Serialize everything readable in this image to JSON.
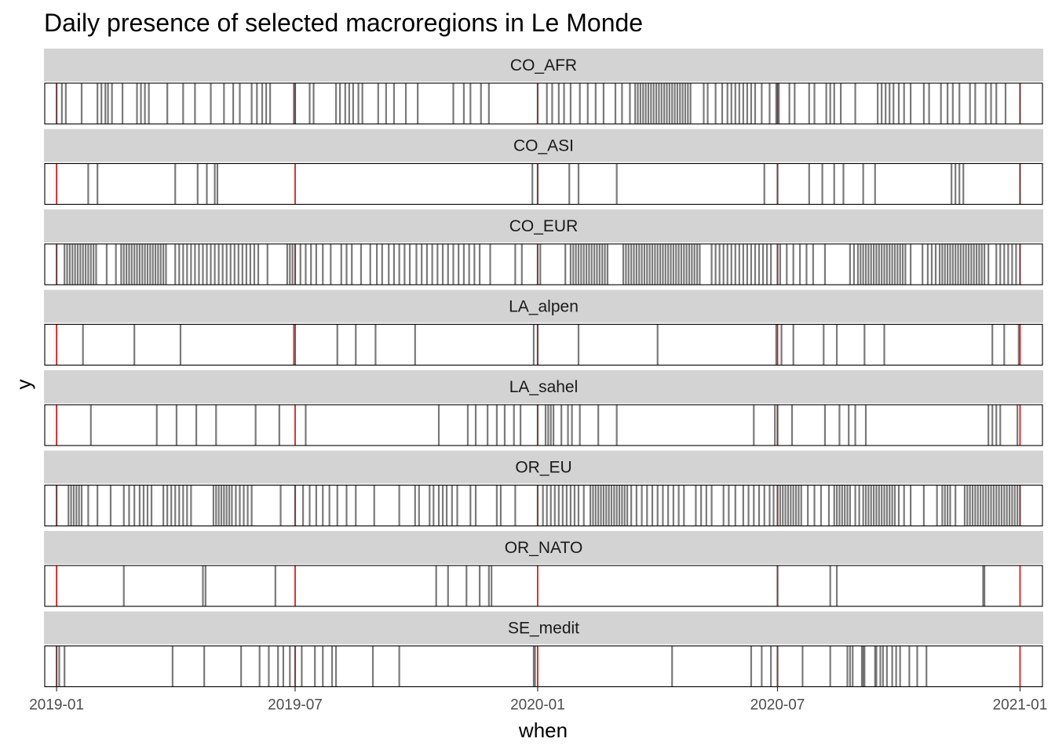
{
  "chart_data": {
    "type": "barcode",
    "title": "Daily presence of selected macroregions in Le Monde",
    "xlabel": "when",
    "ylabel": "y",
    "xlim": [
      "2018-12-23",
      "2021-01-18"
    ],
    "x_ticks": [
      "2019-01-01",
      "2019-07-01",
      "2020-01-01",
      "2020-07-01",
      "2021-01-01"
    ],
    "x_tick_labels": [
      "2019-01",
      "2019-07",
      "2020-01",
      "2020-07",
      "2021-01"
    ],
    "reference_lines": [
      "2019-01-01",
      "2019-07-01",
      "2020-01-01",
      "2020-07-01",
      "2021-01-01"
    ],
    "colors": {
      "mark": "#4d4d4d",
      "reference_line": "#e41a1c",
      "strip_background": "#d3d3d3",
      "panel_border": "#000000"
    },
    "series": [
      {
        "name": "CO_AFR",
        "dates": [
          "2019-01-01",
          "2019-01-05",
          "2019-01-08",
          "2019-01-20",
          "2019-02-01",
          "2019-02-04",
          "2019-02-07",
          "2019-02-09",
          "2019-02-12",
          "2019-02-20",
          "2019-03-03",
          "2019-03-06",
          "2019-03-09",
          "2019-03-12",
          "2019-03-26",
          "2019-04-07",
          "2019-04-16",
          "2019-04-28",
          "2019-05-08",
          "2019-05-15",
          "2019-05-20",
          "2019-05-29",
          "2019-06-02",
          "2019-06-06",
          "2019-06-09",
          "2019-06-12",
          "2019-06-30",
          "2019-07-01",
          "2019-07-12",
          "2019-07-15",
          "2019-08-01",
          "2019-08-04",
          "2019-08-08",
          "2019-08-11",
          "2019-08-14",
          "2019-08-18",
          "2019-08-21",
          "2019-09-02",
          "2019-09-08",
          "2019-09-14",
          "2019-09-23",
          "2019-10-02",
          "2019-10-29",
          "2019-11-06",
          "2019-11-11",
          "2019-11-19",
          "2019-11-25",
          "2020-01-01",
          "2020-01-08",
          "2020-01-12",
          "2020-01-17",
          "2020-01-21",
          "2020-01-26",
          "2020-02-02",
          "2020-02-08",
          "2020-02-14",
          "2020-02-20",
          "2020-02-29",
          "2020-03-05",
          "2020-03-11",
          "2020-03-15",
          "2020-03-17",
          "2020-03-19",
          "2020-03-21",
          "2020-03-23",
          "2020-03-25",
          "2020-03-27",
          "2020-03-29",
          "2020-03-31",
          "2020-04-02",
          "2020-04-04",
          "2020-04-06",
          "2020-04-08",
          "2020-04-10",
          "2020-04-12",
          "2020-04-14",
          "2020-04-16",
          "2020-04-18",
          "2020-04-20",
          "2020-04-22",
          "2020-04-24",
          "2020-04-26",
          "2020-05-06",
          "2020-05-09",
          "2020-05-15",
          "2020-05-20",
          "2020-05-24",
          "2020-05-27",
          "2020-05-30",
          "2020-06-02",
          "2020-06-05",
          "2020-06-08",
          "2020-06-11",
          "2020-06-14",
          "2020-06-19",
          "2020-06-25",
          "2020-06-30",
          "2020-07-01",
          "2020-07-02",
          "2020-07-10",
          "2020-07-14",
          "2020-07-25",
          "2020-07-29",
          "2020-08-07",
          "2020-08-10",
          "2020-08-13",
          "2020-08-18",
          "2020-08-29",
          "2020-09-15",
          "2020-09-18",
          "2020-09-21",
          "2020-09-24",
          "2020-09-27",
          "2020-10-01",
          "2020-10-05",
          "2020-10-10",
          "2020-10-20",
          "2020-10-24",
          "2020-11-02",
          "2020-11-07",
          "2020-11-11",
          "2020-11-16",
          "2020-11-24",
          "2020-11-28",
          "2020-12-06",
          "2020-12-10",
          "2020-12-14",
          "2020-12-21",
          "2021-01-01"
        ]
      },
      {
        "name": "CO_ASI",
        "dates": [
          "2019-01-25",
          "2019-02-01",
          "2019-04-01",
          "2019-04-18",
          "2019-04-25",
          "2019-05-01",
          "2019-05-03",
          "2019-12-28",
          "2020-01-01",
          "2020-01-25",
          "2020-02-01",
          "2020-03-01",
          "2020-06-21",
          "2020-07-01",
          "2020-07-25",
          "2020-08-04",
          "2020-08-13",
          "2020-08-20",
          "2020-09-04",
          "2020-09-13",
          "2020-11-10",
          "2020-11-13",
          "2020-11-16",
          "2020-11-19",
          "2021-01-01"
        ]
      },
      {
        "name": "CO_EUR",
        "dates": [
          "2019-01-01",
          "2019-01-07",
          "2019-01-09",
          "2019-01-11",
          "2019-01-13",
          "2019-01-15",
          "2019-01-17",
          "2019-01-19",
          "2019-01-21",
          "2019-01-23",
          "2019-01-25",
          "2019-01-27",
          "2019-01-29",
          "2019-01-31",
          "2019-02-08",
          "2019-02-15",
          "2019-02-19",
          "2019-02-21",
          "2019-02-23",
          "2019-02-25",
          "2019-02-27",
          "2019-03-01",
          "2019-03-03",
          "2019-03-05",
          "2019-03-07",
          "2019-03-09",
          "2019-03-11",
          "2019-03-13",
          "2019-03-15",
          "2019-03-17",
          "2019-03-19",
          "2019-03-21",
          "2019-03-23",
          "2019-03-25",
          "2019-04-01",
          "2019-04-04",
          "2019-04-07",
          "2019-04-10",
          "2019-04-13",
          "2019-04-16",
          "2019-04-19",
          "2019-04-22",
          "2019-04-25",
          "2019-04-28",
          "2019-05-01",
          "2019-05-04",
          "2019-05-07",
          "2019-05-10",
          "2019-05-13",
          "2019-05-16",
          "2019-05-19",
          "2019-05-22",
          "2019-05-25",
          "2019-05-28",
          "2019-05-31",
          "2019-06-03",
          "2019-06-10",
          "2019-06-25",
          "2019-06-27",
          "2019-06-29",
          "2019-07-01",
          "2019-07-05",
          "2019-07-09",
          "2019-07-13",
          "2019-07-17",
          "2019-07-22",
          "2019-07-28",
          "2019-08-05",
          "2019-08-09",
          "2019-08-13",
          "2019-08-20",
          "2019-08-27",
          "2019-09-01",
          "2019-09-05",
          "2019-09-10",
          "2019-09-14",
          "2019-09-18",
          "2019-09-22",
          "2019-09-26",
          "2019-10-01",
          "2019-10-05",
          "2019-10-09",
          "2019-10-13",
          "2019-10-17",
          "2019-10-21",
          "2019-10-25",
          "2019-10-29",
          "2019-11-02",
          "2019-11-06",
          "2019-11-10",
          "2019-11-14",
          "2019-11-18",
          "2019-11-26",
          "2019-12-15",
          "2019-12-20",
          "2020-01-01",
          "2020-01-03",
          "2020-01-22",
          "2020-01-26",
          "2020-01-28",
          "2020-01-30",
          "2020-02-01",
          "2020-02-03",
          "2020-02-05",
          "2020-02-07",
          "2020-02-09",
          "2020-02-11",
          "2020-02-13",
          "2020-02-15",
          "2020-02-17",
          "2020-02-19",
          "2020-02-21",
          "2020-02-23",
          "2020-03-06",
          "2020-03-08",
          "2020-03-10",
          "2020-03-12",
          "2020-03-14",
          "2020-03-16",
          "2020-03-18",
          "2020-03-20",
          "2020-03-22",
          "2020-03-24",
          "2020-03-26",
          "2020-03-28",
          "2020-03-30",
          "2020-04-01",
          "2020-04-03",
          "2020-04-05",
          "2020-04-07",
          "2020-04-09",
          "2020-04-11",
          "2020-04-13",
          "2020-04-15",
          "2020-04-17",
          "2020-04-19",
          "2020-04-21",
          "2020-04-23",
          "2020-04-25",
          "2020-04-27",
          "2020-04-29",
          "2020-05-01",
          "2020-05-03",
          "2020-05-12",
          "2020-05-15",
          "2020-05-18",
          "2020-05-21",
          "2020-05-24",
          "2020-05-27",
          "2020-05-30",
          "2020-06-02",
          "2020-06-05",
          "2020-06-08",
          "2020-06-11",
          "2020-06-14",
          "2020-06-17",
          "2020-06-20",
          "2020-06-23",
          "2020-06-26",
          "2020-07-01",
          "2020-07-03",
          "2020-07-08",
          "2020-07-13",
          "2020-07-18",
          "2020-07-23",
          "2020-07-28",
          "2020-08-06",
          "2020-08-25",
          "2020-08-28",
          "2020-08-31",
          "2020-09-02",
          "2020-09-04",
          "2020-09-06",
          "2020-09-08",
          "2020-09-10",
          "2020-09-12",
          "2020-09-14",
          "2020-09-16",
          "2020-09-18",
          "2020-09-20",
          "2020-09-22",
          "2020-09-24",
          "2020-09-26",
          "2020-09-28",
          "2020-09-30",
          "2020-10-02",
          "2020-10-04",
          "2020-10-06",
          "2020-10-10",
          "2020-10-19",
          "2020-10-23",
          "2020-10-26",
          "2020-10-29",
          "2020-11-01",
          "2020-11-03",
          "2020-11-05",
          "2020-11-07",
          "2020-11-09",
          "2020-11-11",
          "2020-11-13",
          "2020-11-15",
          "2020-11-17",
          "2020-11-19",
          "2020-11-21",
          "2020-11-23",
          "2020-11-25",
          "2020-11-27",
          "2020-11-29",
          "2020-12-01",
          "2020-12-03",
          "2020-12-05",
          "2020-12-08",
          "2020-12-14",
          "2020-12-17",
          "2020-12-20",
          "2020-12-23",
          "2020-12-26",
          "2020-12-29",
          "2021-01-01"
        ]
      },
      {
        "name": "LA_alpen",
        "dates": [
          "2019-01-21",
          "2019-03-01",
          "2019-04-05",
          "2019-06-30",
          "2019-08-02",
          "2019-08-16",
          "2019-08-31",
          "2019-09-30",
          "2019-12-29",
          "2020-01-01",
          "2020-02-01",
          "2020-04-01",
          "2020-06-30",
          "2020-07-04",
          "2020-07-13",
          "2020-08-05",
          "2020-08-15",
          "2020-09-05",
          "2020-09-20",
          "2020-12-11",
          "2020-12-20",
          "2020-12-31"
        ]
      },
      {
        "name": "LA_sahel",
        "dates": [
          "2019-01-27",
          "2019-03-18",
          "2019-04-02",
          "2019-04-17",
          "2019-05-02",
          "2019-06-01",
          "2019-06-19",
          "2019-07-09",
          "2019-10-18",
          "2019-11-09",
          "2019-11-15",
          "2019-11-24",
          "2019-12-01",
          "2019-12-07",
          "2019-12-14",
          "2019-12-19",
          "2020-01-01",
          "2020-01-07",
          "2020-01-09",
          "2020-01-11",
          "2020-01-13",
          "2020-01-19",
          "2020-01-24",
          "2020-01-27",
          "2020-02-02",
          "2020-02-16",
          "2020-03-01",
          "2020-06-13",
          "2020-06-29",
          "2020-07-01",
          "2020-07-12",
          "2020-08-06",
          "2020-08-17",
          "2020-08-24",
          "2020-08-29",
          "2020-09-06",
          "2020-12-08",
          "2020-12-11",
          "2020-12-14",
          "2020-12-17",
          "2020-12-30"
        ]
      },
      {
        "name": "OR_EU",
        "dates": [
          "2019-01-01",
          "2019-01-10",
          "2019-01-12",
          "2019-01-14",
          "2019-01-16",
          "2019-01-18",
          "2019-01-20",
          "2019-01-25",
          "2019-02-01",
          "2019-02-11",
          "2019-02-21",
          "2019-02-25",
          "2019-03-01",
          "2019-03-05",
          "2019-03-08",
          "2019-03-11",
          "2019-03-14",
          "2019-03-23",
          "2019-03-26",
          "2019-03-29",
          "2019-04-01",
          "2019-04-04",
          "2019-04-07",
          "2019-04-10",
          "2019-04-13",
          "2019-04-30",
          "2019-05-02",
          "2019-05-04",
          "2019-05-06",
          "2019-05-08",
          "2019-05-10",
          "2019-05-12",
          "2019-05-14",
          "2019-05-17",
          "2019-05-20",
          "2019-05-23",
          "2019-05-26",
          "2019-05-29",
          "2019-06-20",
          "2019-07-01",
          "2019-07-07",
          "2019-07-12",
          "2019-07-17",
          "2019-07-22",
          "2019-07-27",
          "2019-08-02",
          "2019-08-09",
          "2019-08-16",
          "2019-08-30",
          "2019-09-18",
          "2019-09-30",
          "2019-10-03",
          "2019-10-11",
          "2019-10-14",
          "2019-10-18",
          "2019-10-21",
          "2019-10-24",
          "2019-10-28",
          "2019-11-01",
          "2019-11-11",
          "2019-11-15",
          "2019-12-01",
          "2019-12-04",
          "2019-12-15",
          "2020-01-01",
          "2020-01-05",
          "2020-01-08",
          "2020-01-11",
          "2020-01-14",
          "2020-01-17",
          "2020-01-20",
          "2020-01-23",
          "2020-01-26",
          "2020-01-29",
          "2020-02-01",
          "2020-02-05",
          "2020-02-10",
          "2020-02-12",
          "2020-02-14",
          "2020-02-16",
          "2020-02-18",
          "2020-02-20",
          "2020-02-22",
          "2020-02-24",
          "2020-02-26",
          "2020-02-28",
          "2020-03-01",
          "2020-03-03",
          "2020-03-05",
          "2020-03-07",
          "2020-03-09",
          "2020-03-12",
          "2020-03-16",
          "2020-03-20",
          "2020-03-24",
          "2020-03-28",
          "2020-04-01",
          "2020-04-05",
          "2020-04-09",
          "2020-04-13",
          "2020-04-17",
          "2020-04-21",
          "2020-04-30",
          "2020-05-04",
          "2020-05-08",
          "2020-05-12",
          "2020-05-21",
          "2020-05-25",
          "2020-05-30",
          "2020-06-05",
          "2020-06-09",
          "2020-06-13",
          "2020-06-17",
          "2020-06-21",
          "2020-06-25",
          "2020-06-28",
          "2020-07-01",
          "2020-07-03",
          "2020-07-05",
          "2020-07-07",
          "2020-07-09",
          "2020-07-11",
          "2020-07-13",
          "2020-07-15",
          "2020-07-17",
          "2020-07-19",
          "2020-07-24",
          "2020-07-29",
          "2020-08-03",
          "2020-08-09",
          "2020-08-13",
          "2020-08-15",
          "2020-08-17",
          "2020-08-19",
          "2020-08-21",
          "2020-08-23",
          "2020-08-25",
          "2020-08-29",
          "2020-09-01",
          "2020-09-04",
          "2020-09-06",
          "2020-09-08",
          "2020-09-10",
          "2020-09-12",
          "2020-09-14",
          "2020-09-16",
          "2020-09-18",
          "2020-09-20",
          "2020-09-22",
          "2020-09-24",
          "2020-09-26",
          "2020-09-28",
          "2020-10-01",
          "2020-10-05",
          "2020-10-10",
          "2020-10-20",
          "2020-10-30",
          "2020-11-03",
          "2020-11-05",
          "2020-11-07",
          "2020-11-09",
          "2020-11-13",
          "2020-11-20",
          "2020-11-22",
          "2020-11-24",
          "2020-11-26",
          "2020-11-28",
          "2020-11-30",
          "2020-12-02",
          "2020-12-04",
          "2020-12-06",
          "2020-12-08",
          "2020-12-10",
          "2020-12-12",
          "2020-12-14",
          "2020-12-16",
          "2020-12-18",
          "2020-12-20",
          "2020-12-22",
          "2020-12-24",
          "2020-12-26",
          "2020-12-28",
          "2020-12-30",
          "2021-01-01"
        ]
      },
      {
        "name": "OR_NATO",
        "dates": [
          "2019-02-21",
          "2019-04-22",
          "2019-04-24",
          "2019-06-16",
          "2019-10-16",
          "2019-10-25",
          "2019-11-08",
          "2019-11-18",
          "2019-11-25",
          "2019-11-27",
          "2020-07-01",
          "2020-08-10",
          "2020-08-15",
          "2020-12-04",
          "2020-12-05"
        ]
      },
      {
        "name": "SE_medit",
        "dates": [
          "2019-01-01",
          "2019-01-03",
          "2019-01-07",
          "2019-03-30",
          "2019-04-23",
          "2019-05-21",
          "2019-06-04",
          "2019-06-11",
          "2019-06-18",
          "2019-06-22",
          "2019-06-27",
          "2019-07-01",
          "2019-07-06",
          "2019-07-16",
          "2019-07-22",
          "2019-07-29",
          "2019-08-01",
          "2019-08-29",
          "2019-09-18",
          "2019-12-29",
          "2019-12-30",
          "2020-04-12",
          "2020-06-11",
          "2020-06-19",
          "2020-06-26",
          "2020-07-01",
          "2020-07-20",
          "2020-08-10",
          "2020-08-23",
          "2020-08-25",
          "2020-08-27",
          "2020-09-03",
          "2020-09-04",
          "2020-09-05",
          "2020-09-13",
          "2020-09-14",
          "2020-09-17",
          "2020-09-19",
          "2020-09-22",
          "2020-09-26",
          "2020-09-29",
          "2020-10-02",
          "2020-10-09",
          "2020-10-15",
          "2020-10-22"
        ]
      }
    ]
  }
}
